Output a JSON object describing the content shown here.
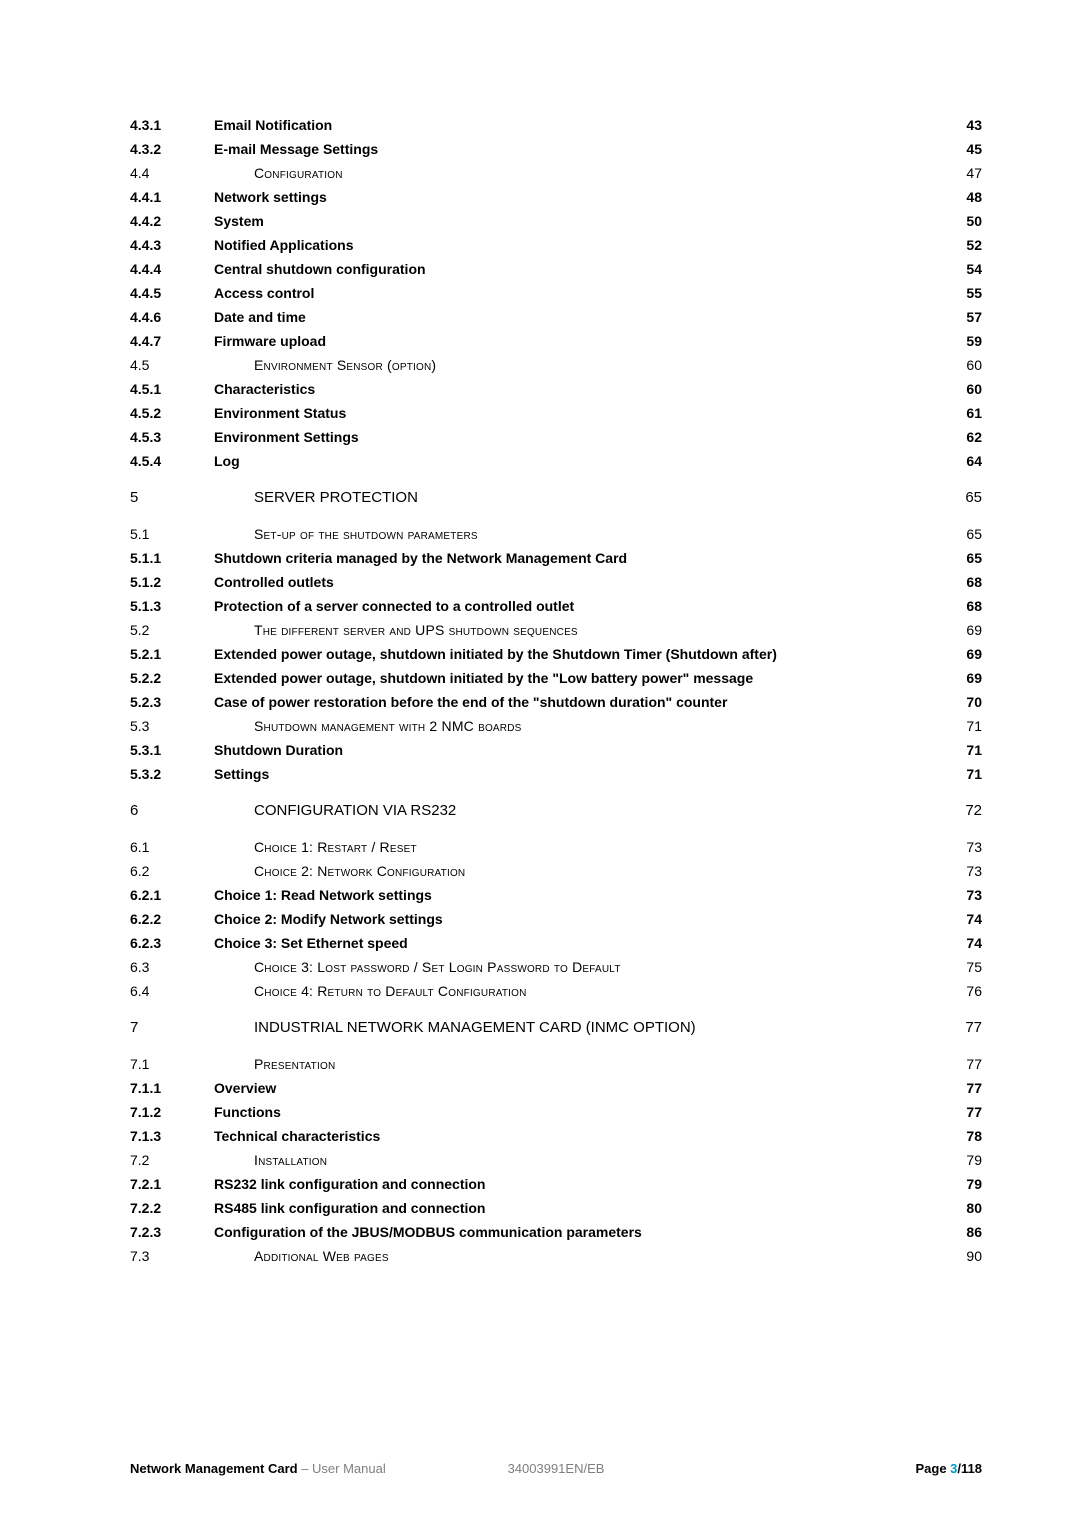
{
  "toc": {
    "rows": [
      {
        "num": "4.3.1",
        "title": "Email Notification",
        "page": "43",
        "bold": true,
        "smallcaps": false,
        "indent": false,
        "fs": 14,
        "gap": "s"
      },
      {
        "num": "4.3.2",
        "title": "E-mail Message Settings",
        "page": "45",
        "bold": true,
        "smallcaps": false,
        "indent": false,
        "fs": 14,
        "gap": "s"
      },
      {
        "num": "4.4",
        "title": "Configuration",
        "page": "47",
        "bold": false,
        "smallcaps": true,
        "indent": true,
        "fs": 14,
        "gap": "s"
      },
      {
        "num": "4.4.1",
        "title": "Network settings",
        "page": "48",
        "bold": true,
        "smallcaps": false,
        "indent": false,
        "fs": 14,
        "gap": "s"
      },
      {
        "num": "4.4.2",
        "title": "System",
        "page": "50",
        "bold": true,
        "smallcaps": false,
        "indent": false,
        "fs": 14,
        "gap": "s"
      },
      {
        "num": "4.4.3",
        "title": "Notified Applications",
        "page": "52",
        "bold": true,
        "smallcaps": false,
        "indent": false,
        "fs": 14,
        "gap": "s"
      },
      {
        "num": "4.4.4",
        "title": "Central shutdown configuration",
        "page": "54",
        "bold": true,
        "smallcaps": false,
        "indent": false,
        "fs": 14,
        "gap": "s"
      },
      {
        "num": "4.4.5",
        "title": "Access control",
        "page": "55",
        "bold": true,
        "smallcaps": false,
        "indent": false,
        "fs": 14,
        "gap": "s"
      },
      {
        "num": "4.4.6",
        "title": "Date and time",
        "page": "57",
        "bold": true,
        "smallcaps": false,
        "indent": false,
        "fs": 14,
        "gap": "s"
      },
      {
        "num": "4.4.7",
        "title": "Firmware upload",
        "page": "59",
        "bold": true,
        "smallcaps": false,
        "indent": false,
        "fs": 14,
        "gap": "s"
      },
      {
        "num": "4.5",
        "title": "Environment Sensor (option)",
        "page": "60",
        "bold": false,
        "smallcaps": true,
        "indent": true,
        "fs": 14,
        "gap": "s"
      },
      {
        "num": "4.5.1",
        "title": "Characteristics",
        "page": "60",
        "bold": true,
        "smallcaps": false,
        "indent": false,
        "fs": 14,
        "gap": "s"
      },
      {
        "num": "4.5.2",
        "title": "Environment Status",
        "page": "61",
        "bold": true,
        "smallcaps": false,
        "indent": false,
        "fs": 14,
        "gap": "s"
      },
      {
        "num": "4.5.3",
        "title": "Environment Settings",
        "page": "62",
        "bold": true,
        "smallcaps": false,
        "indent": false,
        "fs": 14,
        "gap": "s"
      },
      {
        "num": "4.5.4",
        "title": "Log",
        "page": "64",
        "bold": true,
        "smallcaps": false,
        "indent": false,
        "fs": 14,
        "gap": "l"
      },
      {
        "num": "5",
        "title": "SERVER PROTECTION",
        "page": "65",
        "bold": false,
        "smallcaps": false,
        "indent": true,
        "fs": 15,
        "gap": "l"
      },
      {
        "num": "5.1",
        "title": "Set-up of the shutdown parameters",
        "page": "65",
        "bold": false,
        "smallcaps": true,
        "indent": true,
        "fs": 14,
        "gap": "s"
      },
      {
        "num": "5.1.1",
        "title": "Shutdown criteria managed by the Network Management Card",
        "page": "65",
        "bold": true,
        "smallcaps": false,
        "indent": false,
        "fs": 14,
        "gap": "s"
      },
      {
        "num": "5.1.2",
        "title": "Controlled outlets",
        "page": "68",
        "bold": true,
        "smallcaps": false,
        "indent": false,
        "fs": 14,
        "gap": "s"
      },
      {
        "num": "5.1.3",
        "title": "Protection of a server connected to a controlled outlet",
        "page": "68",
        "bold": true,
        "smallcaps": false,
        "indent": false,
        "fs": 14,
        "gap": "s"
      },
      {
        "num": "5.2",
        "title": "The different server and UPS shutdown sequences",
        "page": "69",
        "bold": false,
        "smallcaps": true,
        "indent": true,
        "fs": 14,
        "gap": "s"
      },
      {
        "num": "5.2.1",
        "title": "Extended power outage, shutdown initiated by the Shutdown Timer   (Shutdown after)",
        "page": "69",
        "bold": true,
        "smallcaps": false,
        "indent": false,
        "fs": 14,
        "gap": "s"
      },
      {
        "num": "5.2.2",
        "title": "Extended power outage, shutdown initiated by the \"Low battery power\" message",
        "page": "69",
        "bold": true,
        "smallcaps": false,
        "indent": false,
        "fs": 14,
        "gap": "s"
      },
      {
        "num": "5.2.3",
        "title": "Case of power restoration before the end of the \"shutdown duration\" counter",
        "page": "70",
        "bold": true,
        "smallcaps": false,
        "indent": false,
        "fs": 14,
        "gap": "s"
      },
      {
        "num": "5.3",
        "title": "Shutdown management with 2 NMC boards",
        "page": "71",
        "bold": false,
        "smallcaps": true,
        "indent": true,
        "fs": 14,
        "gap": "s"
      },
      {
        "num": "5.3.1",
        "title": "Shutdown Duration",
        "page": "71",
        "bold": true,
        "smallcaps": false,
        "indent": false,
        "fs": 14,
        "gap": "s"
      },
      {
        "num": "5.3.2",
        "title": "Settings",
        "page": "71",
        "bold": true,
        "smallcaps": false,
        "indent": false,
        "fs": 14,
        "gap": "l"
      },
      {
        "num": "6",
        "title": "CONFIGURATION VIA RS232",
        "page": "72",
        "bold": false,
        "smallcaps": false,
        "indent": true,
        "fs": 15,
        "gap": "l"
      },
      {
        "num": "6.1",
        "title": "Choice 1: Restart / Reset",
        "page": "73",
        "bold": false,
        "smallcaps": true,
        "indent": true,
        "fs": 14,
        "gap": "s"
      },
      {
        "num": "6.2",
        "title": "Choice 2: Network Configuration",
        "page": "73",
        "bold": false,
        "smallcaps": true,
        "indent": true,
        "fs": 14,
        "gap": "s"
      },
      {
        "num": "6.2.1",
        "title": "Choice 1: Read Network settings",
        "page": "73",
        "bold": true,
        "smallcaps": false,
        "indent": false,
        "fs": 14,
        "gap": "s"
      },
      {
        "num": "6.2.2",
        "title": "Choice 2: Modify Network settings",
        "page": "74",
        "bold": true,
        "smallcaps": false,
        "indent": false,
        "fs": 14,
        "gap": "s"
      },
      {
        "num": "6.2.3",
        "title": "Choice 3: Set Ethernet speed",
        "page": "74",
        "bold": true,
        "smallcaps": false,
        "indent": false,
        "fs": 14,
        "gap": "s"
      },
      {
        "num": "6.3",
        "title": "Choice 3: Lost password / Set Login Password to Default",
        "page": "75",
        "bold": false,
        "smallcaps": true,
        "indent": true,
        "fs": 14,
        "gap": "s"
      },
      {
        "num": "6.4",
        "title": "Choice 4: Return to Default Configuration",
        "page": "76",
        "bold": false,
        "smallcaps": true,
        "indent": true,
        "fs": 14,
        "gap": "l"
      },
      {
        "num": "7",
        "title": "INDUSTRIAL NETWORK MANAGEMENT CARD (INMC OPTION)",
        "page": "77",
        "bold": false,
        "smallcaps": false,
        "indent": true,
        "fs": 15,
        "gap": "l"
      },
      {
        "num": "7.1",
        "title": "Presentation",
        "page": "77",
        "bold": false,
        "smallcaps": true,
        "indent": true,
        "fs": 14,
        "gap": "s"
      },
      {
        "num": "7.1.1",
        "title": "Overview",
        "page": "77",
        "bold": true,
        "smallcaps": false,
        "indent": false,
        "fs": 14,
        "gap": "s"
      },
      {
        "num": "7.1.2",
        "title": "Functions",
        "page": "77",
        "bold": true,
        "smallcaps": false,
        "indent": false,
        "fs": 14,
        "gap": "s"
      },
      {
        "num": "7.1.3",
        "title": "Technical characteristics",
        "page": "78",
        "bold": true,
        "smallcaps": false,
        "indent": false,
        "fs": 14,
        "gap": "s"
      },
      {
        "num": "7.2",
        "title": "Installation",
        "page": "79",
        "bold": false,
        "smallcaps": true,
        "indent": true,
        "fs": 14,
        "gap": "s"
      },
      {
        "num": "7.2.1",
        "title": "RS232 link configuration and connection",
        "page": "79",
        "bold": true,
        "smallcaps": false,
        "indent": false,
        "fs": 14,
        "gap": "s"
      },
      {
        "num": "7.2.2",
        "title": "RS485 link configuration and connection",
        "page": "80",
        "bold": true,
        "smallcaps": false,
        "indent": false,
        "fs": 14,
        "gap": "s"
      },
      {
        "num": "7.2.3",
        "title": "Configuration of the JBUS/MODBUS communication parameters",
        "page": "86",
        "bold": true,
        "smallcaps": false,
        "indent": false,
        "fs": 14,
        "gap": "s"
      },
      {
        "num": "7.3",
        "title": "Additional Web pages",
        "page": "90",
        "bold": false,
        "smallcaps": true,
        "indent": true,
        "fs": 14,
        "gap": "s"
      }
    ]
  },
  "footer": {
    "left_a": "Network Management Card",
    "left_b": " – User Manual",
    "center": "34003991EN/EB",
    "right_a": "Page ",
    "right_b": "3",
    "right_c": "/118"
  },
  "colors": {
    "text": "#000000",
    "muted": "#7f7f7f",
    "accent": "#0099cc",
    "bg": "#ffffff"
  }
}
